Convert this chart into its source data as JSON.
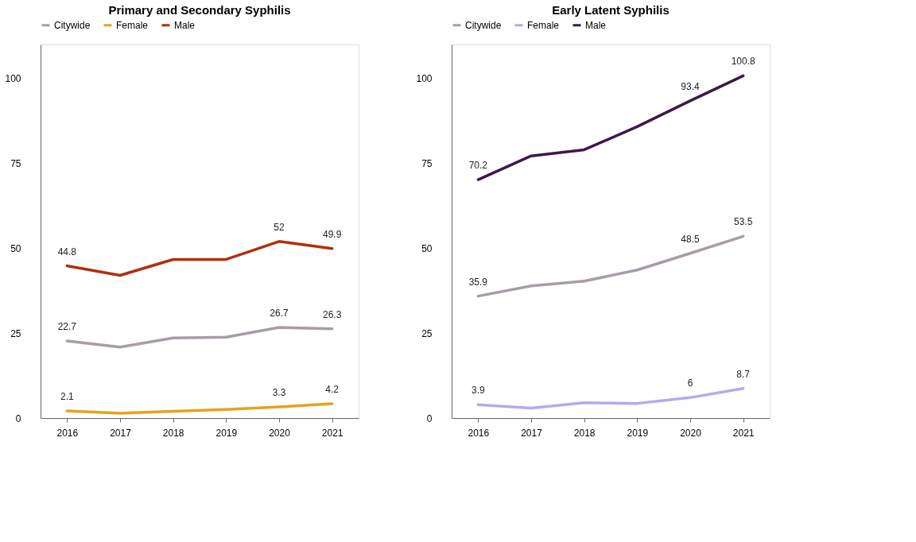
{
  "chart_data": [
    {
      "type": "line",
      "title": "Primary and Secondary Syphilis",
      "categories": [
        "2016",
        "2017",
        "2018",
        "2019",
        "2020",
        "2021"
      ],
      "series": [
        {
          "name": "Citywide",
          "color": "#a89ca8",
          "values": [
            22.7,
            20.9,
            23.6,
            23.8,
            26.7,
            26.3
          ],
          "value_labels": [
            "22.7",
            null,
            null,
            null,
            "26.7",
            "26.3"
          ]
        },
        {
          "name": "Female",
          "color": "#e8a21e",
          "values": [
            2.1,
            1.4,
            2.0,
            2.5,
            3.3,
            4.2
          ],
          "value_labels": [
            "2.1",
            null,
            null,
            null,
            "3.3",
            "4.2"
          ]
        },
        {
          "name": "Male",
          "color": "#b0300f",
          "values": [
            44.8,
            42.0,
            46.7,
            46.7,
            52,
            49.9
          ],
          "value_labels": [
            "44.8",
            null,
            null,
            null,
            "52",
            "49.9"
          ]
        }
      ],
      "ylim": [
        0,
        110
      ],
      "yticks": [
        0,
        25,
        50,
        75,
        100
      ],
      "grid": false,
      "legend": "top"
    },
    {
      "type": "line",
      "title": "Early Latent Syphilis",
      "categories": [
        "2016",
        "2017",
        "2018",
        "2019",
        "2020",
        "2021"
      ],
      "series": [
        {
          "name": "Citywide",
          "color": "#a89ca8",
          "values": [
            35.9,
            38.9,
            40.3,
            43.6,
            48.5,
            53.5
          ],
          "value_labels": [
            "35.9",
            null,
            null,
            null,
            "48.5",
            "53.5"
          ]
        },
        {
          "name": "Female",
          "color": "#b3aaf0",
          "values": [
            3.9,
            2.9,
            4.5,
            4.3,
            6,
            8.7
          ],
          "value_labels": [
            "3.9",
            null,
            null,
            null,
            "6",
            "8.7"
          ]
        },
        {
          "name": "Male",
          "color": "#3d1a4a",
          "values": [
            70.2,
            77.2,
            79.0,
            85.8,
            93.4,
            100.8
          ],
          "value_labels": [
            "70.2",
            null,
            null,
            null,
            "93.4",
            "100.8"
          ]
        }
      ],
      "ylim": [
        0,
        110
      ],
      "yticks": [
        0,
        25,
        50,
        75,
        100
      ],
      "grid": false,
      "legend": "top"
    }
  ]
}
